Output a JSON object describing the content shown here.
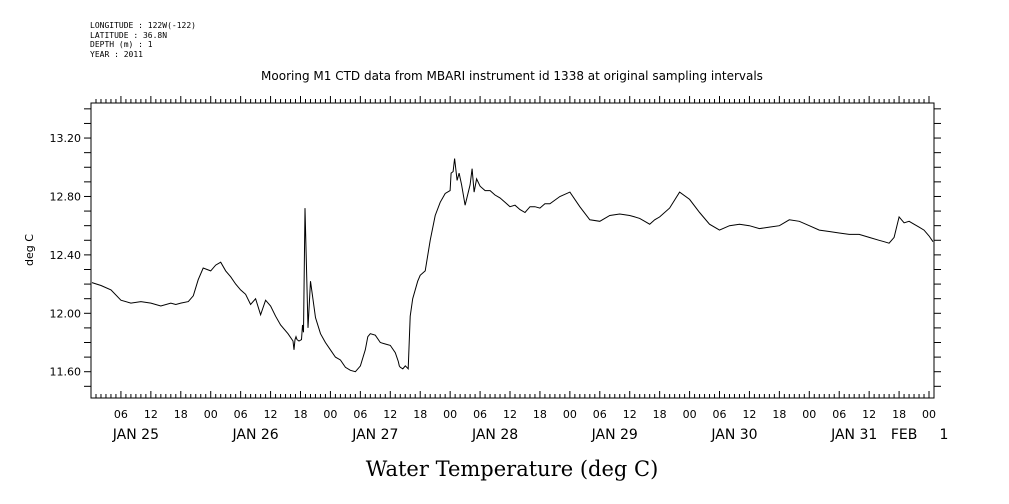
{
  "header_info": {
    "longitude": "LONGITUDE : 122W(-122)",
    "latitude": "LATITUDE : 36.8N",
    "depth": "DEPTH (m) : 1",
    "year": "YEAR : 2011"
  },
  "chart_data": {
    "type": "line",
    "title": "Mooring M1 CTD data from MBARI instrument id 1338 at original sampling intervals",
    "xlabel": "Water Temperature (deg C)",
    "ylabel": "deg C",
    "xlim_hours": [
      0,
      169
    ],
    "ylim": [
      11.42,
      13.44
    ],
    "grid": false,
    "yticks": [
      11.6,
      12.0,
      12.4,
      12.8,
      13.2
    ],
    "ytick_labels": [
      "11.60",
      "12.00",
      "12.40",
      "12.80",
      "13.20"
    ],
    "xticks_hours": [
      6,
      12,
      18,
      24,
      30,
      36,
      42,
      48,
      54,
      60,
      66,
      72,
      78,
      84,
      90,
      96,
      102,
      108,
      114,
      120,
      126,
      132,
      138,
      144,
      150,
      156,
      162,
      168
    ],
    "xtick_labels": [
      "06",
      "12",
      "18",
      "00",
      "06",
      "12",
      "18",
      "00",
      "06",
      "12",
      "18",
      "00",
      "06",
      "12",
      "18",
      "00",
      "06",
      "12",
      "18",
      "00",
      "06",
      "12",
      "18",
      "00",
      "06",
      "12",
      "18",
      "00"
    ],
    "date_labels": [
      {
        "label": "JAN 25",
        "hour": 9
      },
      {
        "label": "JAN 26",
        "hour": 33
      },
      {
        "label": "JAN 27",
        "hour": 57
      },
      {
        "label": "JAN 28",
        "hour": 81
      },
      {
        "label": "JAN 29",
        "hour": 105
      },
      {
        "label": "JAN 30",
        "hour": 129
      },
      {
        "label": "JAN 31",
        "hour": 153
      },
      {
        "label": "FEB",
        "hour": 163
      },
      {
        "label": "1",
        "hour": 171
      }
    ],
    "series": [
      {
        "x_hours": [
          0.2,
          2,
          4,
          6,
          8,
          10,
          12,
          14,
          16,
          17,
          18,
          19.5,
          20.5,
          21.5,
          22.5,
          24,
          25,
          26,
          27,
          28,
          29,
          30,
          31,
          32,
          33,
          34,
          35,
          36,
          37,
          38,
          39.5,
          40.5,
          40.7,
          40.9,
          41.1,
          41.3,
          41.7,
          42.2,
          42.4,
          42.6,
          42.9,
          43.5,
          44,
          45,
          46,
          47,
          48,
          49,
          50,
          51,
          52,
          53,
          54,
          55,
          55.5,
          56,
          57,
          58,
          59,
          60,
          61,
          61.6,
          61.8,
          62,
          62.5,
          63,
          63.3,
          63.6,
          64,
          64.5,
          65.5,
          66,
          67,
          68,
          69,
          70,
          71,
          72,
          72.2,
          72.6,
          72.9,
          73.4,
          73.8,
          74.3,
          75,
          76,
          76.4,
          76.8,
          77.3,
          78,
          79,
          80,
          81,
          82,
          83,
          84,
          85,
          86,
          87,
          88,
          89,
          90,
          91,
          92,
          94,
          96,
          98,
          100,
          102,
          104,
          106,
          108,
          109,
          110,
          111,
          112,
          113,
          114,
          116,
          118,
          120,
          122,
          124,
          126,
          128,
          130,
          132,
          134,
          136,
          138,
          140,
          142,
          144,
          146,
          148,
          150,
          152,
          154,
          156,
          158,
          159,
          160,
          161,
          162,
          163,
          164,
          165,
          166,
          167,
          168,
          168.8
        ],
        "y": [
          12.21,
          12.19,
          12.16,
          12.09,
          12.07,
          12.08,
          12.07,
          12.05,
          12.07,
          12.06,
          12.07,
          12.08,
          12.12,
          12.23,
          12.31,
          12.29,
          12.33,
          12.35,
          12.29,
          12.25,
          12.2,
          12.16,
          12.13,
          12.06,
          12.1,
          11.99,
          12.09,
          12.05,
          11.98,
          11.92,
          11.86,
          11.81,
          11.75,
          11.82,
          11.84,
          11.82,
          11.81,
          11.82,
          11.92,
          11.87,
          12.72,
          11.9,
          12.22,
          11.97,
          11.86,
          11.8,
          11.75,
          11.7,
          11.68,
          11.63,
          11.61,
          11.6,
          11.64,
          11.75,
          11.84,
          11.86,
          11.85,
          11.8,
          11.79,
          11.78,
          11.73,
          11.67,
          11.64,
          11.63,
          11.62,
          11.64,
          11.63,
          11.62,
          11.98,
          12.1,
          12.22,
          12.26,
          12.29,
          12.5,
          12.67,
          12.76,
          12.82,
          12.84,
          12.96,
          12.97,
          13.06,
          12.91,
          12.96,
          12.88,
          12.74,
          12.88,
          12.99,
          12.83,
          12.92,
          12.87,
          12.84,
          12.84,
          12.81,
          12.79,
          12.76,
          12.73,
          12.74,
          12.71,
          12.69,
          12.73,
          12.73,
          12.72,
          12.75,
          12.75,
          12.8,
          12.83,
          12.73,
          12.64,
          12.63,
          12.67,
          12.68,
          12.67,
          12.66,
          12.65,
          12.63,
          12.61,
          12.64,
          12.66,
          12.72,
          12.83,
          12.78,
          12.69,
          12.61,
          12.57,
          12.6,
          12.61,
          12.6,
          12.58,
          12.59,
          12.6,
          12.64,
          12.63,
          12.6,
          12.57,
          12.56,
          12.55,
          12.54,
          12.54,
          12.52,
          12.5,
          12.49,
          12.48,
          12.52,
          12.66,
          12.62,
          12.63,
          12.61,
          12.59,
          12.57,
          12.53,
          12.49
        ]
      }
    ]
  }
}
